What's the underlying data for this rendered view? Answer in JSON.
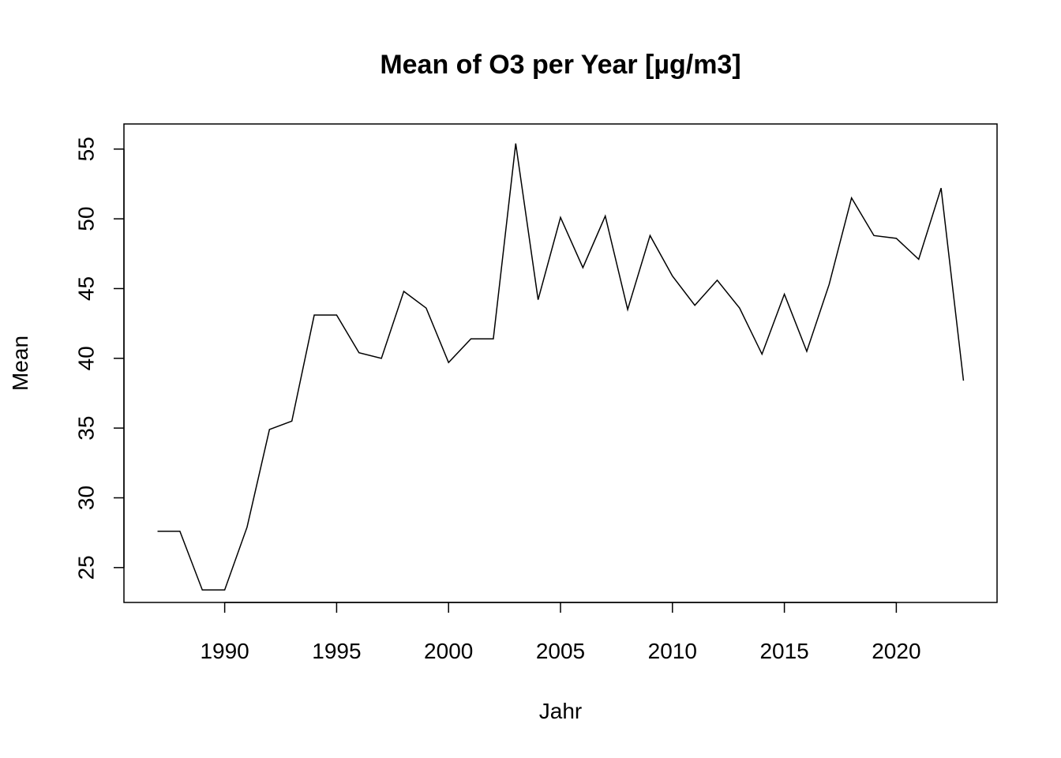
{
  "chart_data": {
    "type": "line",
    "title": "Mean of O3 per Year [µg/m3]",
    "xlabel": "Jahr",
    "ylabel": "Mean",
    "xlim": [
      1985.5,
      2024.5
    ],
    "ylim": [
      22.5,
      56.8
    ],
    "xticks": [
      1990,
      1995,
      2000,
      2005,
      2010,
      2015,
      2020
    ],
    "yticks": [
      25,
      30,
      35,
      40,
      45,
      50,
      55
    ],
    "grid": false,
    "x": [
      1987,
      1988,
      1989,
      1990,
      1991,
      1992,
      1993,
      1994,
      1995,
      1996,
      1997,
      1998,
      1999,
      2000,
      2001,
      2002,
      2003,
      2004,
      2005,
      2006,
      2007,
      2008,
      2009,
      2010,
      2011,
      2012,
      2013,
      2014,
      2015,
      2016,
      2017,
      2018,
      2019,
      2020,
      2021,
      2022,
      2023
    ],
    "series": [
      {
        "values": [
          27.6,
          27.6,
          23.4,
          23.4,
          27.9,
          34.9,
          35.5,
          43.1,
          43.1,
          40.4,
          40.0,
          44.8,
          43.6,
          39.7,
          41.4,
          41.4,
          55.4,
          44.2,
          50.1,
          46.5,
          50.2,
          43.5,
          48.8,
          45.9,
          43.8,
          45.6,
          43.6,
          40.3,
          44.6,
          40.5,
          45.3,
          51.5,
          48.8,
          48.6,
          47.1,
          52.2,
          38.4
        ]
      }
    ]
  }
}
